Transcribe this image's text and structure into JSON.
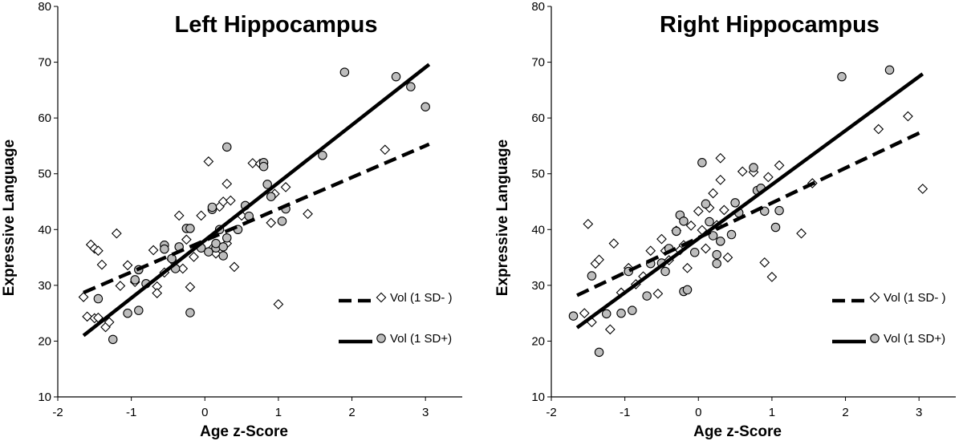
{
  "chart_data": [
    {
      "type": "scatter",
      "title": "Left Hippocampus",
      "xlabel": "Age z-Score",
      "ylabel": "Expressive Language",
      "xlim": [
        -2,
        3.5
      ],
      "ylim": [
        10,
        80
      ],
      "xticks": [
        "-2",
        "-1",
        "0",
        "1",
        "2",
        "3"
      ],
      "yticks": [
        "10",
        "20",
        "30",
        "40",
        "50",
        "60",
        "70",
        "80"
      ],
      "legend_position": "lower-right",
      "series": [
        {
          "name": "Vol (1 SD- )",
          "marker": "diamond",
          "color": "#ffffff",
          "line_style": "dashed",
          "fit_line": [
            [
              -1.65,
              28.7
            ],
            [
              3.05,
              55.3
            ]
          ],
          "points": [
            [
              -1.65,
              27.9
            ],
            [
              -1.6,
              24.4
            ],
            [
              -1.55,
              37.3
            ],
            [
              -1.5,
              24.1
            ],
            [
              -1.5,
              36.6
            ],
            [
              -1.45,
              24.2
            ],
            [
              -1.45,
              36.2
            ],
            [
              -1.4,
              33.7
            ],
            [
              -1.35,
              22.5
            ],
            [
              -1.3,
              23.4
            ],
            [
              -1.2,
              39.3
            ],
            [
              -1.15,
              29.9
            ],
            [
              -1.05,
              33.6
            ],
            [
              -0.95,
              30.6
            ],
            [
              -0.7,
              36.3
            ],
            [
              -0.65,
              29.8
            ],
            [
              -0.65,
              28.6
            ],
            [
              -0.55,
              32.3
            ],
            [
              -0.45,
              34.6
            ],
            [
              -0.35,
              42.5
            ],
            [
              -0.3,
              33.0
            ],
            [
              -0.25,
              38.2
            ],
            [
              -0.2,
              29.7
            ],
            [
              -0.15,
              35.1
            ],
            [
              -0.05,
              42.5
            ],
            [
              0.05,
              52.2
            ],
            [
              0.1,
              36.6
            ],
            [
              0.15,
              35.7
            ],
            [
              0.2,
              44.1
            ],
            [
              0.25,
              45.0
            ],
            [
              0.3,
              48.2
            ],
            [
              0.3,
              37.5
            ],
            [
              0.35,
              45.2
            ],
            [
              0.4,
              33.3
            ],
            [
              0.5,
              42.5
            ],
            [
              0.65,
              51.9
            ],
            [
              0.75,
              51.8
            ],
            [
              0.9,
              41.2
            ],
            [
              0.95,
              46.4
            ],
            [
              1.0,
              26.6
            ],
            [
              1.1,
              47.6
            ],
            [
              1.4,
              42.8
            ],
            [
              2.45,
              54.3
            ]
          ]
        },
        {
          "name": "Vol  (1 SD+)",
          "marker": "circle",
          "color": "#bdbdbd",
          "line_style": "solid",
          "fit_line": [
            [
              -1.65,
              21.0
            ],
            [
              3.05,
              69.6
            ]
          ],
          "points": [
            [
              -1.45,
              27.6
            ],
            [
              -1.25,
              20.3
            ],
            [
              -1.05,
              25.0
            ],
            [
              -0.95,
              31.0
            ],
            [
              -0.9,
              32.8
            ],
            [
              -0.9,
              25.5
            ],
            [
              -0.8,
              30.3
            ],
            [
              -0.55,
              37.2
            ],
            [
              -0.55,
              36.5
            ],
            [
              -0.45,
              34.8
            ],
            [
              -0.4,
              33.0
            ],
            [
              -0.35,
              36.9
            ],
            [
              -0.25,
              40.2
            ],
            [
              -0.2,
              40.2
            ],
            [
              -0.2,
              25.1
            ],
            [
              -0.05,
              36.7
            ],
            [
              0.05,
              36.0
            ],
            [
              0.1,
              43.6
            ],
            [
              0.1,
              44.0
            ],
            [
              0.15,
              36.7
            ],
            [
              0.15,
              37.5
            ],
            [
              0.2,
              40.0
            ],
            [
              0.25,
              35.3
            ],
            [
              0.25,
              36.9
            ],
            [
              0.3,
              38.5
            ],
            [
              0.3,
              54.8
            ],
            [
              0.45,
              40.0
            ],
            [
              0.55,
              44.3
            ],
            [
              0.6,
              42.4
            ],
            [
              0.8,
              52.0
            ],
            [
              0.8,
              51.3
            ],
            [
              0.85,
              48.1
            ],
            [
              0.9,
              45.9
            ],
            [
              1.05,
              41.5
            ],
            [
              1.1,
              43.7
            ],
            [
              1.6,
              53.3
            ],
            [
              1.9,
              68.2
            ],
            [
              2.6,
              67.4
            ],
            [
              2.8,
              65.6
            ],
            [
              3.0,
              62.0
            ]
          ]
        }
      ]
    },
    {
      "type": "scatter",
      "title": "Right Hippocampus",
      "xlabel": "Age z-Score",
      "ylabel": "Expressive Language",
      "xlim": [
        -2,
        3.5
      ],
      "ylim": [
        10,
        80
      ],
      "xticks": [
        "-2",
        "-1",
        "0",
        "1",
        "2",
        "3"
      ],
      "yticks": [
        "10",
        "20",
        "30",
        "40",
        "50",
        "60",
        "70",
        "80"
      ],
      "legend_position": "lower-right",
      "series": [
        {
          "name": "Vol (1 SD- )",
          "marker": "diamond",
          "color": "#ffffff",
          "line_style": "dashed",
          "fit_line": [
            [
              -1.65,
              28.2
            ],
            [
              3.05,
              57.6
            ]
          ],
          "points": [
            [
              -1.55,
              25.0
            ],
            [
              -1.5,
              41.0
            ],
            [
              -1.45,
              23.4
            ],
            [
              -1.4,
              33.9
            ],
            [
              -1.35,
              34.6
            ],
            [
              -1.2,
              22.1
            ],
            [
              -1.15,
              37.5
            ],
            [
              -1.05,
              28.7
            ],
            [
              -0.95,
              33.1
            ],
            [
              -0.85,
              30.2
            ],
            [
              -0.75,
              31.6
            ],
            [
              -0.65,
              36.2
            ],
            [
              -0.55,
              28.5
            ],
            [
              -0.5,
              38.3
            ],
            [
              -0.45,
              36.2
            ],
            [
              -0.4,
              34.5
            ],
            [
              -0.3,
              39.8
            ],
            [
              -0.25,
              36.3
            ],
            [
              -0.2,
              37.2
            ],
            [
              -0.15,
              33.1
            ],
            [
              -0.1,
              40.7
            ],
            [
              0.0,
              43.3
            ],
            [
              0.05,
              39.9
            ],
            [
              0.1,
              36.6
            ],
            [
              0.15,
              43.9
            ],
            [
              0.2,
              46.5
            ],
            [
              0.25,
              40.8
            ],
            [
              0.3,
              48.9
            ],
            [
              0.3,
              52.8
            ],
            [
              0.35,
              43.5
            ],
            [
              0.4,
              35.0
            ],
            [
              0.6,
              50.4
            ],
            [
              0.75,
              50.3
            ],
            [
              0.85,
              47.1
            ],
            [
              0.9,
              34.1
            ],
            [
              0.95,
              49.4
            ],
            [
              1.0,
              31.5
            ],
            [
              1.1,
              51.5
            ],
            [
              1.4,
              39.3
            ],
            [
              1.55,
              48.3
            ],
            [
              2.45,
              58.0
            ],
            [
              2.85,
              60.3
            ],
            [
              3.05,
              47.3
            ]
          ]
        },
        {
          "name": "Vol  (1 SD+)",
          "marker": "circle",
          "color": "#bdbdbd",
          "line_style": "solid",
          "fit_line": [
            [
              -1.65,
              22.4
            ],
            [
              3.05,
              67.9
            ]
          ],
          "points": [
            [
              -1.7,
              24.5
            ],
            [
              -1.45,
              31.7
            ],
            [
              -1.35,
              18.0
            ],
            [
              -1.25,
              24.9
            ],
            [
              -1.05,
              25.0
            ],
            [
              -0.95,
              32.5
            ],
            [
              -0.9,
              25.5
            ],
            [
              -0.7,
              28.1
            ],
            [
              -0.65,
              33.9
            ],
            [
              -0.5,
              34.0
            ],
            [
              -0.45,
              32.5
            ],
            [
              -0.4,
              36.6
            ],
            [
              -0.3,
              39.7
            ],
            [
              -0.25,
              42.6
            ],
            [
              -0.2,
              41.5
            ],
            [
              -0.2,
              28.9
            ],
            [
              -0.15,
              29.2
            ],
            [
              -0.05,
              35.9
            ],
            [
              0.05,
              52.0
            ],
            [
              0.1,
              44.6
            ],
            [
              0.15,
              41.4
            ],
            [
              0.2,
              38.9
            ],
            [
              0.25,
              35.5
            ],
            [
              0.25,
              33.9
            ],
            [
              0.3,
              37.9
            ],
            [
              0.45,
              39.1
            ],
            [
              0.5,
              44.8
            ],
            [
              0.55,
              43.0
            ],
            [
              0.75,
              51.1
            ],
            [
              0.8,
              47.0
            ],
            [
              0.85,
              47.4
            ],
            [
              0.9,
              43.3
            ],
            [
              1.05,
              40.4
            ],
            [
              1.1,
              43.4
            ],
            [
              1.95,
              67.4
            ],
            [
              2.6,
              68.6
            ]
          ]
        }
      ]
    }
  ]
}
